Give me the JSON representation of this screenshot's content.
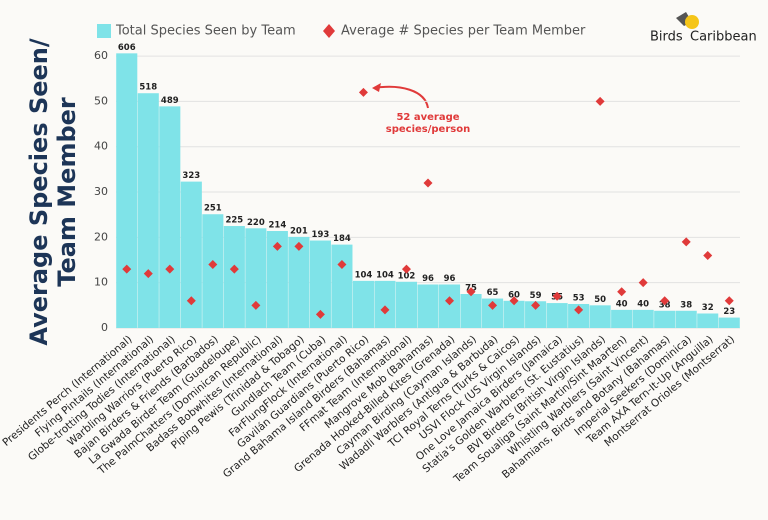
{
  "chart_data": {
    "type": "bar",
    "categories": [
      "Presidents Perch (International)",
      "Flying Pintails (International)",
      "Globe-trotting Todies (International)",
      "Warbling Warriors (Puerto Rico)",
      "Bajan Birders & Friends (Barbados)",
      "La Gwada Birder Team (Guadeloupe)",
      "The PalmChatters (Dominican Republic)",
      "Badass Bobwhites (International)",
      "Piping Pewis (Trinidad & Tobago)",
      "Gundlach Team (Cuba)",
      "FarFlungFlock (International)",
      "Gavilán Guardians (Puerto Rico)",
      "Grand Bahama Island Birders (Bahamas)",
      "FFmat Team (International)",
      "Mangrove Mob (Bahamas)",
      "Grenada Hooked-Billed Kites (Grenada)",
      "Cayman Birding (Cayman Islands)",
      "Wadadli Warblers (Antigua & Barbuda)",
      "TCI Royal Terns (Turks & Caicos)",
      "USVI Flock (US Virgin Islands)",
      "One Love Jamaica Birders (Jamaica)",
      "Statia's Golden Warblers (St. Eustatius)",
      "BVI Birders (British Virgin Islands)",
      "Team Soualiga (Saint Martin/Sint Maarten)",
      "Whistling Warblers (Saint Vincent)",
      "Bahamians, Birds and Botany (Bahamas)",
      "Imperial Seekers (Dominica)",
      "Team AXA Tern-It-Up (Anguilla)",
      "Montserrat Orioles (Montserrat)"
    ],
    "series": [
      {
        "name": "Total Species Seen by Team",
        "color": "#7fe3e8",
        "axis": "y2",
        "values": [
          606,
          518,
          489,
          323,
          251,
          225,
          220,
          214,
          201,
          193,
          184,
          104,
          104,
          102,
          96,
          96,
          75,
          65,
          60,
          59,
          55,
          53,
          50,
          40,
          40,
          38,
          38,
          32,
          23
        ]
      },
      {
        "name": "Average # Species per Team Member",
        "color": "#e03a3a",
        "values": [
          13,
          12,
          13,
          6,
          14,
          13,
          5,
          18,
          18,
          3,
          14,
          52,
          4,
          13,
          32,
          6,
          8,
          5,
          6,
          5,
          7,
          4,
          50,
          8,
          10,
          6,
          19,
          16,
          6
        ]
      }
    ],
    "ylabel": [
      "Average Species Seen/",
      "Team Member"
    ],
    "ylim": [
      0,
      62
    ],
    "yticks": [
      0,
      10,
      20,
      30,
      40,
      50,
      60
    ],
    "y2lim": [
      0,
      620
    ],
    "grid": true,
    "legend": "top-left",
    "annotation": [
      "52 average",
      "species/person"
    ],
    "logo": [
      "Birds",
      "Caribbean"
    ]
  }
}
